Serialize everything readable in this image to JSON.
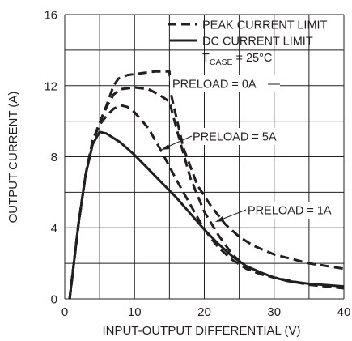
{
  "chart_data": {
    "type": "line",
    "xlabel": "INPUT-OUTPUT DIFFERENTIAL (V)",
    "ylabel": "OUTPUT CURRENT (A)",
    "xlim": [
      0,
      40
    ],
    "ylim": [
      0,
      16
    ],
    "x_ticks": [
      0,
      10,
      20,
      30,
      40
    ],
    "y_ticks": [
      0,
      4,
      8,
      12,
      16
    ],
    "x_grid_step": 5,
    "y_grid_step": 2,
    "grid": true,
    "legend": {
      "placement": "top-right",
      "entries": [
        {
          "label": "PEAK CURRENT LIMIT",
          "style": "dashed"
        },
        {
          "label": "DC CURRENT LIMIT",
          "style": "solid"
        }
      ]
    },
    "condition": {
      "main": "T",
      "sub": "CASE",
      "rest": " = 25°C"
    },
    "series": [
      {
        "label": "PRELOAD = 0A",
        "style": "dashed",
        "points": [
          [
            0.7,
            0
          ],
          [
            2,
            4.3
          ],
          [
            3,
            7.0
          ],
          [
            4,
            8.9
          ],
          [
            5,
            9.9
          ],
          [
            6,
            10.9
          ],
          [
            7,
            12.0
          ],
          [
            7.7,
            12.4
          ],
          [
            9,
            12.6
          ],
          [
            11,
            12.7
          ],
          [
            13,
            12.8
          ],
          [
            15,
            12.8
          ],
          [
            15.3,
            11.4
          ],
          [
            17,
            8.5
          ],
          [
            19,
            6.4
          ],
          [
            21,
            5.2
          ],
          [
            23,
            4.2
          ],
          [
            25,
            3.5
          ],
          [
            27,
            3.0
          ],
          [
            30,
            2.5
          ],
          [
            35,
            2.0
          ],
          [
            40,
            1.7
          ]
        ]
      },
      {
        "label": "PRELOAD = 1A",
        "style": "dashed",
        "points": [
          [
            0.7,
            0
          ],
          [
            2,
            4.3
          ],
          [
            3,
            7.0
          ],
          [
            4,
            8.9
          ],
          [
            5,
            9.9
          ],
          [
            6,
            10.8
          ],
          [
            7,
            11.5
          ],
          [
            8,
            11.8
          ],
          [
            10,
            11.9
          ],
          [
            12,
            11.8
          ],
          [
            13.5,
            11.5
          ],
          [
            15,
            11.1
          ],
          [
            16,
            9.6
          ],
          [
            18,
            6.8
          ],
          [
            20,
            4.9
          ],
          [
            22,
            3.6
          ],
          [
            24,
            2.5
          ],
          [
            26,
            1.8
          ],
          [
            28,
            1.4
          ],
          [
            30,
            1.2
          ],
          [
            32,
            1.0
          ],
          [
            35,
            0.8
          ],
          [
            40,
            0.6
          ]
        ]
      },
      {
        "label": "PRELOAD = 5A",
        "style": "dashed",
        "points": [
          [
            0.7,
            0
          ],
          [
            2,
            4.3
          ],
          [
            3,
            7.0
          ],
          [
            4,
            8.9
          ],
          [
            5,
            9.8
          ],
          [
            6,
            10.3
          ],
          [
            7,
            10.7
          ],
          [
            8,
            10.9
          ],
          [
            9,
            10.8
          ],
          [
            10,
            10.5
          ],
          [
            12,
            9.6
          ],
          [
            14,
            8.2
          ],
          [
            16,
            6.7
          ],
          [
            18,
            5.3
          ],
          [
            20,
            3.9
          ],
          [
            22,
            2.9
          ],
          [
            24,
            2.2
          ],
          [
            26,
            1.7
          ],
          [
            28,
            1.4
          ],
          [
            30,
            1.2
          ],
          [
            35,
            0.8
          ],
          [
            40,
            0.6
          ]
        ]
      },
      {
        "label": "DC CURRENT LIMIT",
        "style": "solid",
        "points": [
          [
            0.7,
            0
          ],
          [
            2,
            4.3
          ],
          [
            3,
            7.0
          ],
          [
            4,
            8.7
          ],
          [
            5,
            9.4
          ],
          [
            6,
            9.3
          ],
          [
            8,
            8.8
          ],
          [
            10,
            8.1
          ],
          [
            12,
            7.3
          ],
          [
            14,
            6.5
          ],
          [
            16,
            5.7
          ],
          [
            18,
            4.8
          ],
          [
            20,
            3.9
          ],
          [
            22,
            3.1
          ],
          [
            24,
            2.4
          ],
          [
            26,
            1.85
          ],
          [
            28,
            1.5
          ],
          [
            30,
            1.2
          ],
          [
            32,
            1.0
          ],
          [
            35,
            0.85
          ],
          [
            40,
            0.7
          ]
        ]
      }
    ],
    "annotations": [
      {
        "text": "PRELOAD = 0A",
        "series": "PRELOAD = 0A"
      },
      {
        "text": "PRELOAD = 5A",
        "series": "PRELOAD = 5A"
      },
      {
        "text": "PRELOAD = 1A",
        "series": "PRELOAD = 1A"
      }
    ]
  }
}
